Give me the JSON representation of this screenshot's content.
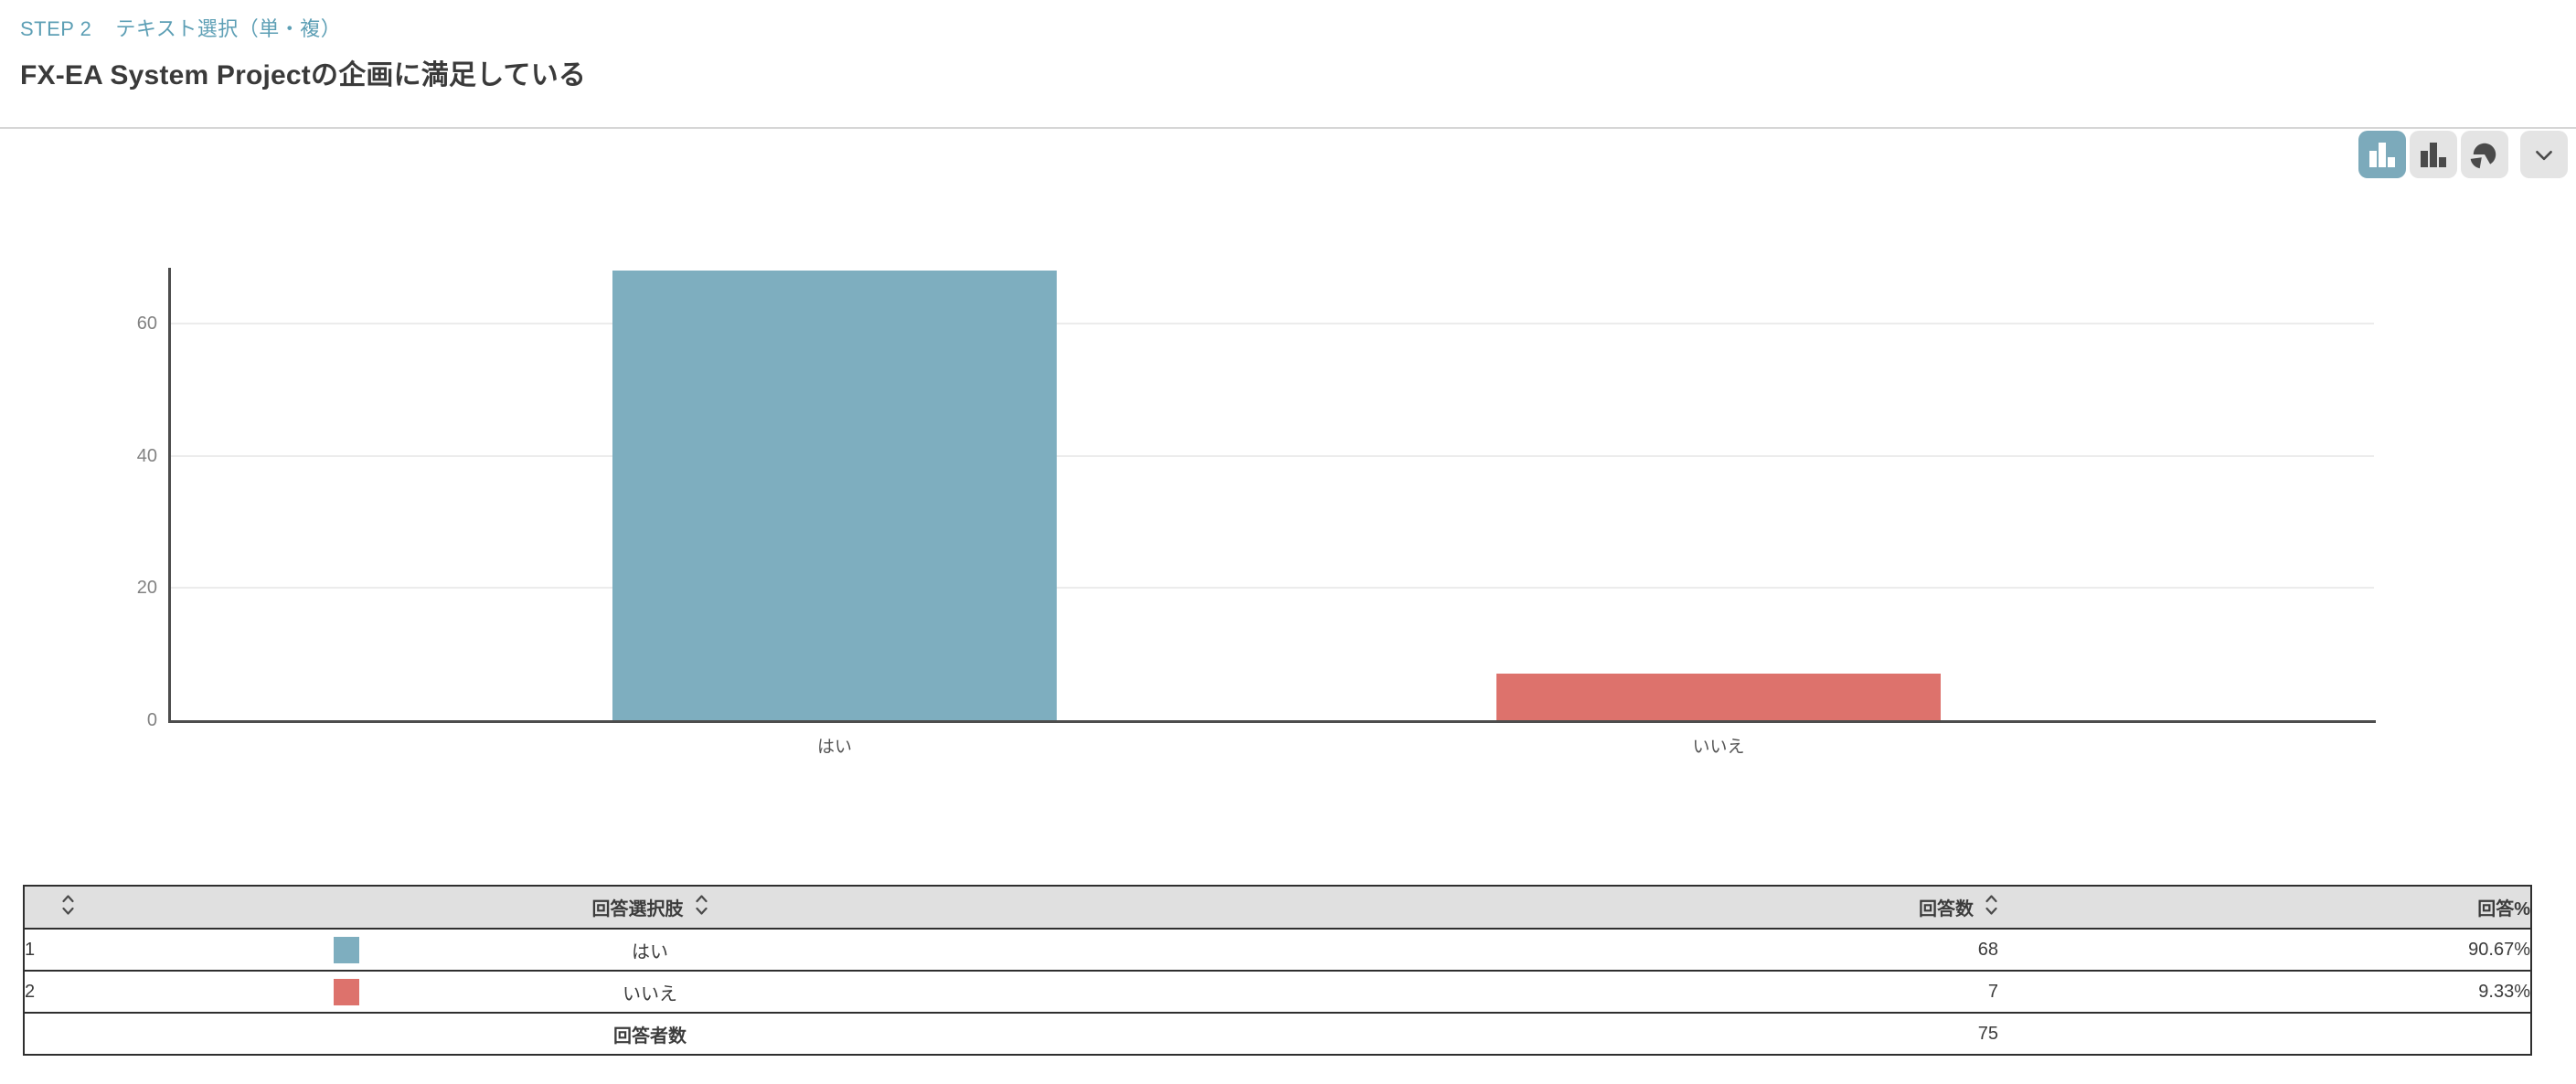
{
  "header": {
    "step_label": "STEP 2",
    "question_type_label": "テキスト選択（単・複）",
    "title": "FX-EA System Projectの企画に満足している"
  },
  "toolbar": {
    "buttons": [
      {
        "icon": "bar-chart-icon",
        "active": true
      },
      {
        "icon": "bar-chart-icon",
        "active": false
      },
      {
        "icon": "pie-chart-icon",
        "active": false
      },
      {
        "icon": "chevron-down-icon",
        "active": false
      }
    ]
  },
  "chart_data": {
    "type": "bar",
    "categories": [
      "はい",
      "いいえ"
    ],
    "values": [
      68,
      7
    ],
    "colors": [
      "#7eaebf",
      "#dd726c"
    ],
    "title": "",
    "xlabel": "",
    "ylabel": "",
    "ylim": [
      0,
      68.4
    ],
    "yticks": [
      0,
      20,
      40,
      60
    ],
    "grid": true,
    "legend": false
  },
  "table": {
    "columns": {
      "choice": "回答選択肢",
      "count": "回答数",
      "percent": "回答%"
    },
    "rows": [
      {
        "index": "1",
        "color": "#7eaebf",
        "choice": "はい",
        "count": "68",
        "percent": "90.67%"
      },
      {
        "index": "2",
        "color": "#dd726c",
        "choice": "いいえ",
        "count": "7",
        "percent": "9.33%"
      }
    ],
    "footer": {
      "label": "回答者数",
      "count": "75",
      "percent": ""
    }
  },
  "colors": {
    "accent_teal": "#7eaebf",
    "accent_red": "#dd726c",
    "active_button_bg": "#7caabb",
    "inactive_button_bg": "#e4e4e4",
    "table_header_bg": "#e0e0e0",
    "axis_line": "#4d4d4d",
    "step_label_teal": "#5d9fb5"
  }
}
